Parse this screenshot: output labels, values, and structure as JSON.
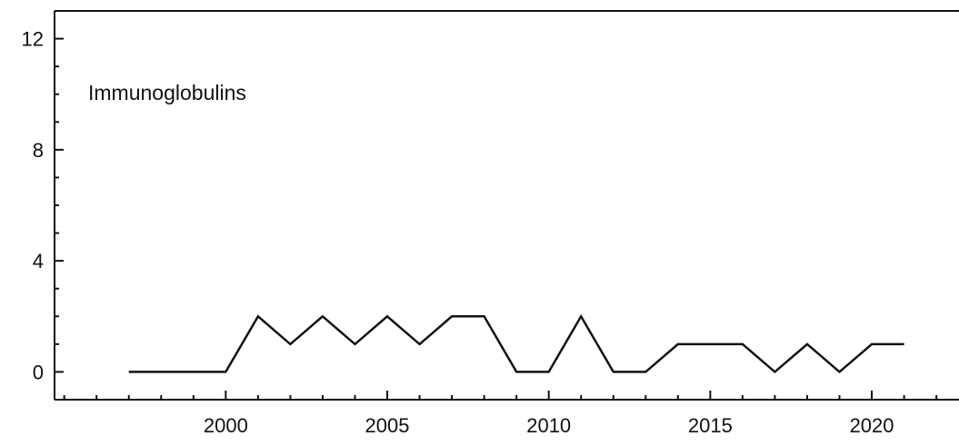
{
  "chart_data": {
    "type": "line",
    "title": "",
    "xlabel": "",
    "ylabel": "",
    "annotation": "Immunoglobulins",
    "xlim": [
      1994.7,
      2022.7
    ],
    "ylim": [
      -1.0,
      13.0
    ],
    "x_ticks": [
      2000,
      2005,
      2010,
      2015,
      2020
    ],
    "y_ticks": [
      0,
      4,
      8,
      12
    ],
    "x": [
      1997,
      1998,
      1999,
      2000,
      2001,
      2002,
      2003,
      2004,
      2005,
      2006,
      2007,
      2008,
      2009,
      2010,
      2011,
      2012,
      2013,
      2014,
      2015,
      2016,
      2017,
      2018,
      2019,
      2020,
      2021
    ],
    "series": [
      {
        "values": [
          0,
          0,
          0,
          0,
          2,
          1,
          2,
          1,
          2,
          1,
          2,
          2,
          0,
          0,
          2,
          0,
          0,
          1,
          1,
          1,
          0,
          1,
          0,
          1,
          1
        ],
        "color": "#111111"
      }
    ],
    "grid": false,
    "legend": "none"
  }
}
